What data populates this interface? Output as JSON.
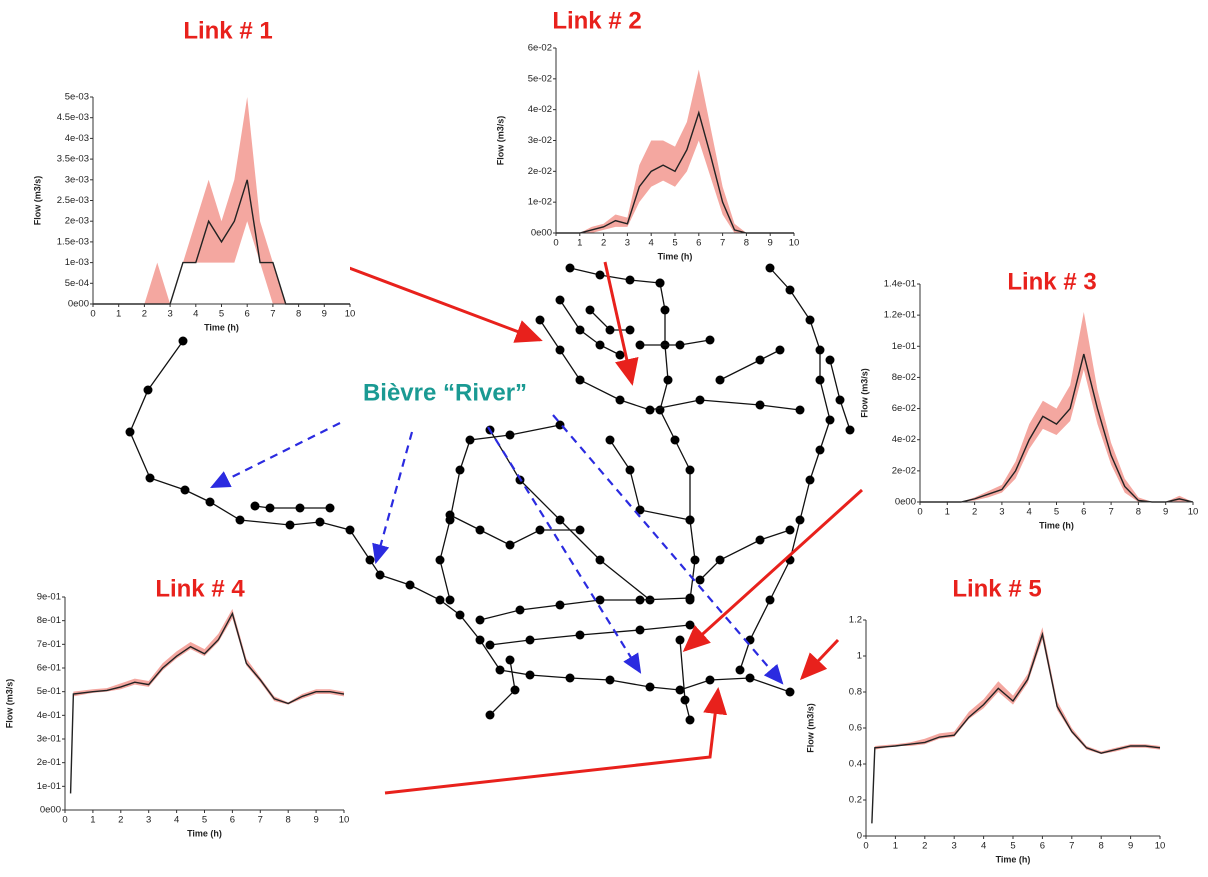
{
  "annotation": "Bièvre “River”",
  "chart_data": [
    {
      "type": "line",
      "title": "Link # 1",
      "xlabel": "Time (h)",
      "ylabel": "Flow (m3/s)",
      "color": "#222222",
      "band_color": "#f08a80",
      "x": [
        0,
        0.5,
        1,
        1.5,
        2,
        2.5,
        3,
        3.5,
        4,
        4.5,
        5,
        5.5,
        6,
        6.5,
        7,
        7.5,
        8,
        8.5,
        9,
        9.5,
        10
      ],
      "values": [
        0,
        0,
        0,
        0,
        0,
        0,
        0,
        0.001,
        0.001,
        0.002,
        0.0015,
        0.002,
        0.003,
        0.001,
        0.001,
        0,
        0,
        0,
        0,
        0,
        0
      ],
      "upper": [
        0,
        0,
        0,
        0,
        0,
        0.001,
        0,
        0.001,
        0.002,
        0.003,
        0.002,
        0.003,
        0.005,
        0.002,
        0.001,
        0,
        0,
        0,
        0,
        0,
        0
      ],
      "lower": [
        0,
        0,
        0,
        0,
        0,
        0,
        0,
        0.001,
        0.001,
        0.001,
        0.001,
        0.001,
        0.002,
        0.001,
        0,
        0,
        0,
        0,
        0,
        0,
        0
      ],
      "xlim": [
        0,
        10
      ],
      "xticks": [
        0,
        1,
        2,
        3,
        4,
        5,
        6,
        7,
        8,
        9,
        10
      ],
      "ylim": [
        0,
        0.005
      ],
      "yticks": [
        {
          "value": 0,
          "label": "0e00"
        },
        {
          "value": 0.0005,
          "label": "5e-04"
        },
        {
          "value": 0.001,
          "label": "1e-03"
        },
        {
          "value": 0.0015,
          "label": "1.5e-03"
        },
        {
          "value": 0.002,
          "label": "2e-03"
        },
        {
          "value": 0.0025,
          "label": "2.5e-03"
        },
        {
          "value": 0.003,
          "label": "3e-03"
        },
        {
          "value": 0.0035,
          "label": "3.5e-03"
        },
        {
          "value": 0.004,
          "label": "4e-03"
        },
        {
          "value": 0.0045,
          "label": "4.5e-03"
        },
        {
          "value": 0.005,
          "label": "5e-03"
        }
      ]
    },
    {
      "type": "line",
      "title": "Link # 2",
      "xlabel": "Time (h)",
      "ylabel": "Flow (m3/s)",
      "color": "#222222",
      "band_color": "#f08a80",
      "x": [
        0,
        0.5,
        1,
        1.5,
        2,
        2.5,
        3,
        3.5,
        4,
        4.5,
        5,
        5.5,
        6,
        6.5,
        7,
        7.5,
        8,
        8.5,
        9,
        9.5,
        10
      ],
      "values": [
        0,
        0,
        0,
        0.001,
        0.002,
        0.004,
        0.003,
        0.015,
        0.02,
        0.022,
        0.02,
        0.027,
        0.039,
        0.025,
        0.01,
        0.001,
        0,
        0,
        0,
        0,
        0
      ],
      "upper": [
        0,
        0,
        0,
        0.002,
        0.003,
        0.006,
        0.005,
        0.022,
        0.03,
        0.03,
        0.028,
        0.036,
        0.053,
        0.034,
        0.015,
        0.003,
        0,
        0,
        0,
        0,
        0
      ],
      "lower": [
        0,
        0,
        0,
        0,
        0.001,
        0.002,
        0.002,
        0.01,
        0.015,
        0.017,
        0.015,
        0.02,
        0.03,
        0.018,
        0.006,
        0,
        0,
        0,
        0,
        0,
        0
      ],
      "xlim": [
        0,
        10
      ],
      "xticks": [
        0,
        1,
        2,
        3,
        4,
        5,
        6,
        7,
        8,
        9,
        10
      ],
      "ylim": [
        0,
        0.06
      ],
      "yticks": [
        {
          "value": 0,
          "label": "0e00"
        },
        {
          "value": 0.01,
          "label": "1e-02"
        },
        {
          "value": 0.02,
          "label": "2e-02"
        },
        {
          "value": 0.03,
          "label": "3e-02"
        },
        {
          "value": 0.04,
          "label": "4e-02"
        },
        {
          "value": 0.05,
          "label": "5e-02"
        },
        {
          "value": 0.06,
          "label": "6e-02"
        }
      ]
    },
    {
      "type": "line",
      "title": "Link # 3",
      "xlabel": "Time (h)",
      "ylabel": "Flow (m3/s)",
      "color": "#222222",
      "band_color": "#f08a80",
      "x": [
        0,
        0.5,
        1,
        1.5,
        2,
        2.5,
        3,
        3.5,
        4,
        4.5,
        5,
        5.5,
        6,
        6.5,
        7,
        7.5,
        8,
        8.5,
        9,
        9.5,
        10
      ],
      "values": [
        0,
        0,
        0,
        0,
        0.002,
        0.005,
        0.008,
        0.02,
        0.04,
        0.055,
        0.05,
        0.06,
        0.095,
        0.06,
        0.03,
        0.01,
        0.001,
        0,
        0,
        0.002,
        0
      ],
      "upper": [
        0,
        0,
        0,
        0,
        0.003,
        0.007,
        0.011,
        0.026,
        0.05,
        0.065,
        0.06,
        0.075,
        0.122,
        0.072,
        0.038,
        0.015,
        0.003,
        0,
        0,
        0.004,
        0
      ],
      "lower": [
        0,
        0,
        0,
        0,
        0.001,
        0.003,
        0.006,
        0.015,
        0.034,
        0.047,
        0.043,
        0.052,
        0.085,
        0.05,
        0.024,
        0.006,
        0,
        0,
        0,
        0,
        0
      ],
      "xlim": [
        0,
        10
      ],
      "xticks": [
        0,
        1,
        2,
        3,
        4,
        5,
        6,
        7,
        8,
        9,
        10
      ],
      "ylim": [
        0,
        0.14
      ],
      "yticks": [
        {
          "value": 0,
          "label": "0e00"
        },
        {
          "value": 0.02,
          "label": "2e-02"
        },
        {
          "value": 0.04,
          "label": "4e-02"
        },
        {
          "value": 0.06,
          "label": "6e-02"
        },
        {
          "value": 0.08,
          "label": "8e-02"
        },
        {
          "value": 0.1,
          "label": "1e-01"
        },
        {
          "value": 0.12,
          "label": "1.2e-01"
        },
        {
          "value": 0.14,
          "label": "1.4e-01"
        }
      ]
    },
    {
      "type": "line",
      "title": "Link # 4",
      "xlabel": "Time (h)",
      "ylabel": "Flow (m3/s)",
      "color": "#222222",
      "band_color": "#f08a80",
      "x": [
        0.2,
        0.3,
        1,
        1.5,
        2,
        2.5,
        3,
        3.5,
        4,
        4.5,
        5,
        5.5,
        6,
        6.5,
        7,
        7.5,
        8,
        8.5,
        9,
        9.5,
        10
      ],
      "values": [
        0.07,
        0.49,
        0.5,
        0.505,
        0.52,
        0.54,
        0.53,
        0.6,
        0.65,
        0.69,
        0.66,
        0.72,
        0.83,
        0.62,
        0.55,
        0.47,
        0.45,
        0.48,
        0.5,
        0.5,
        0.49
      ],
      "upper": [
        0.07,
        0.5,
        0.51,
        0.515,
        0.535,
        0.555,
        0.545,
        0.62,
        0.67,
        0.71,
        0.68,
        0.745,
        0.85,
        0.64,
        0.56,
        0.48,
        0.455,
        0.49,
        0.51,
        0.51,
        0.5
      ],
      "lower": [
        0.07,
        0.48,
        0.495,
        0.5,
        0.51,
        0.53,
        0.52,
        0.59,
        0.64,
        0.68,
        0.65,
        0.71,
        0.81,
        0.61,
        0.54,
        0.46,
        0.445,
        0.47,
        0.49,
        0.49,
        0.48
      ],
      "xlim": [
        0,
        10
      ],
      "xticks": [
        0,
        1,
        2,
        3,
        4,
        5,
        6,
        7,
        8,
        9,
        10
      ],
      "ylim": [
        0,
        0.9
      ],
      "yticks": [
        {
          "value": 0,
          "label": "0e00"
        },
        {
          "value": 0.1,
          "label": "1e-01"
        },
        {
          "value": 0.2,
          "label": "2e-01"
        },
        {
          "value": 0.3,
          "label": "3e-01"
        },
        {
          "value": 0.4,
          "label": "4e-01"
        },
        {
          "value": 0.5,
          "label": "5e-01"
        },
        {
          "value": 0.6,
          "label": "6e-01"
        },
        {
          "value": 0.7,
          "label": "7e-01"
        },
        {
          "value": 0.8,
          "label": "8e-01"
        },
        {
          "value": 0.9,
          "label": "9e-01"
        }
      ]
    },
    {
      "type": "line",
      "title": "Link # 5",
      "xlabel": "Time (h)",
      "ylabel": "Flow (m3/s)",
      "color": "#222222",
      "band_color": "#f08a80",
      "x": [
        0.2,
        0.3,
        1,
        1.5,
        2,
        2.5,
        3,
        3.5,
        4,
        4.5,
        5,
        5.5,
        6,
        6.5,
        7,
        7.5,
        8,
        8.5,
        9,
        9.5,
        10
      ],
      "values": [
        0.07,
        0.49,
        0.5,
        0.51,
        0.52,
        0.55,
        0.56,
        0.66,
        0.73,
        0.82,
        0.75,
        0.87,
        1.12,
        0.72,
        0.58,
        0.49,
        0.46,
        0.48,
        0.5,
        0.5,
        0.49
      ],
      "upper": [
        0.07,
        0.5,
        0.51,
        0.52,
        0.54,
        0.57,
        0.58,
        0.69,
        0.76,
        0.86,
        0.78,
        0.9,
        1.16,
        0.75,
        0.6,
        0.5,
        0.47,
        0.49,
        0.51,
        0.51,
        0.5
      ],
      "lower": [
        0.07,
        0.48,
        0.5,
        0.5,
        0.51,
        0.54,
        0.55,
        0.65,
        0.71,
        0.8,
        0.73,
        0.85,
        1.09,
        0.7,
        0.57,
        0.48,
        0.455,
        0.47,
        0.49,
        0.49,
        0.48
      ],
      "xlim": [
        0,
        10
      ],
      "xticks": [
        0,
        1,
        2,
        3,
        4,
        5,
        6,
        7,
        8,
        9,
        10
      ],
      "ylim": [
        0,
        1.2
      ],
      "yticks": [
        0,
        0.2,
        0.4,
        0.6,
        0.8,
        1,
        1.2
      ]
    }
  ]
}
